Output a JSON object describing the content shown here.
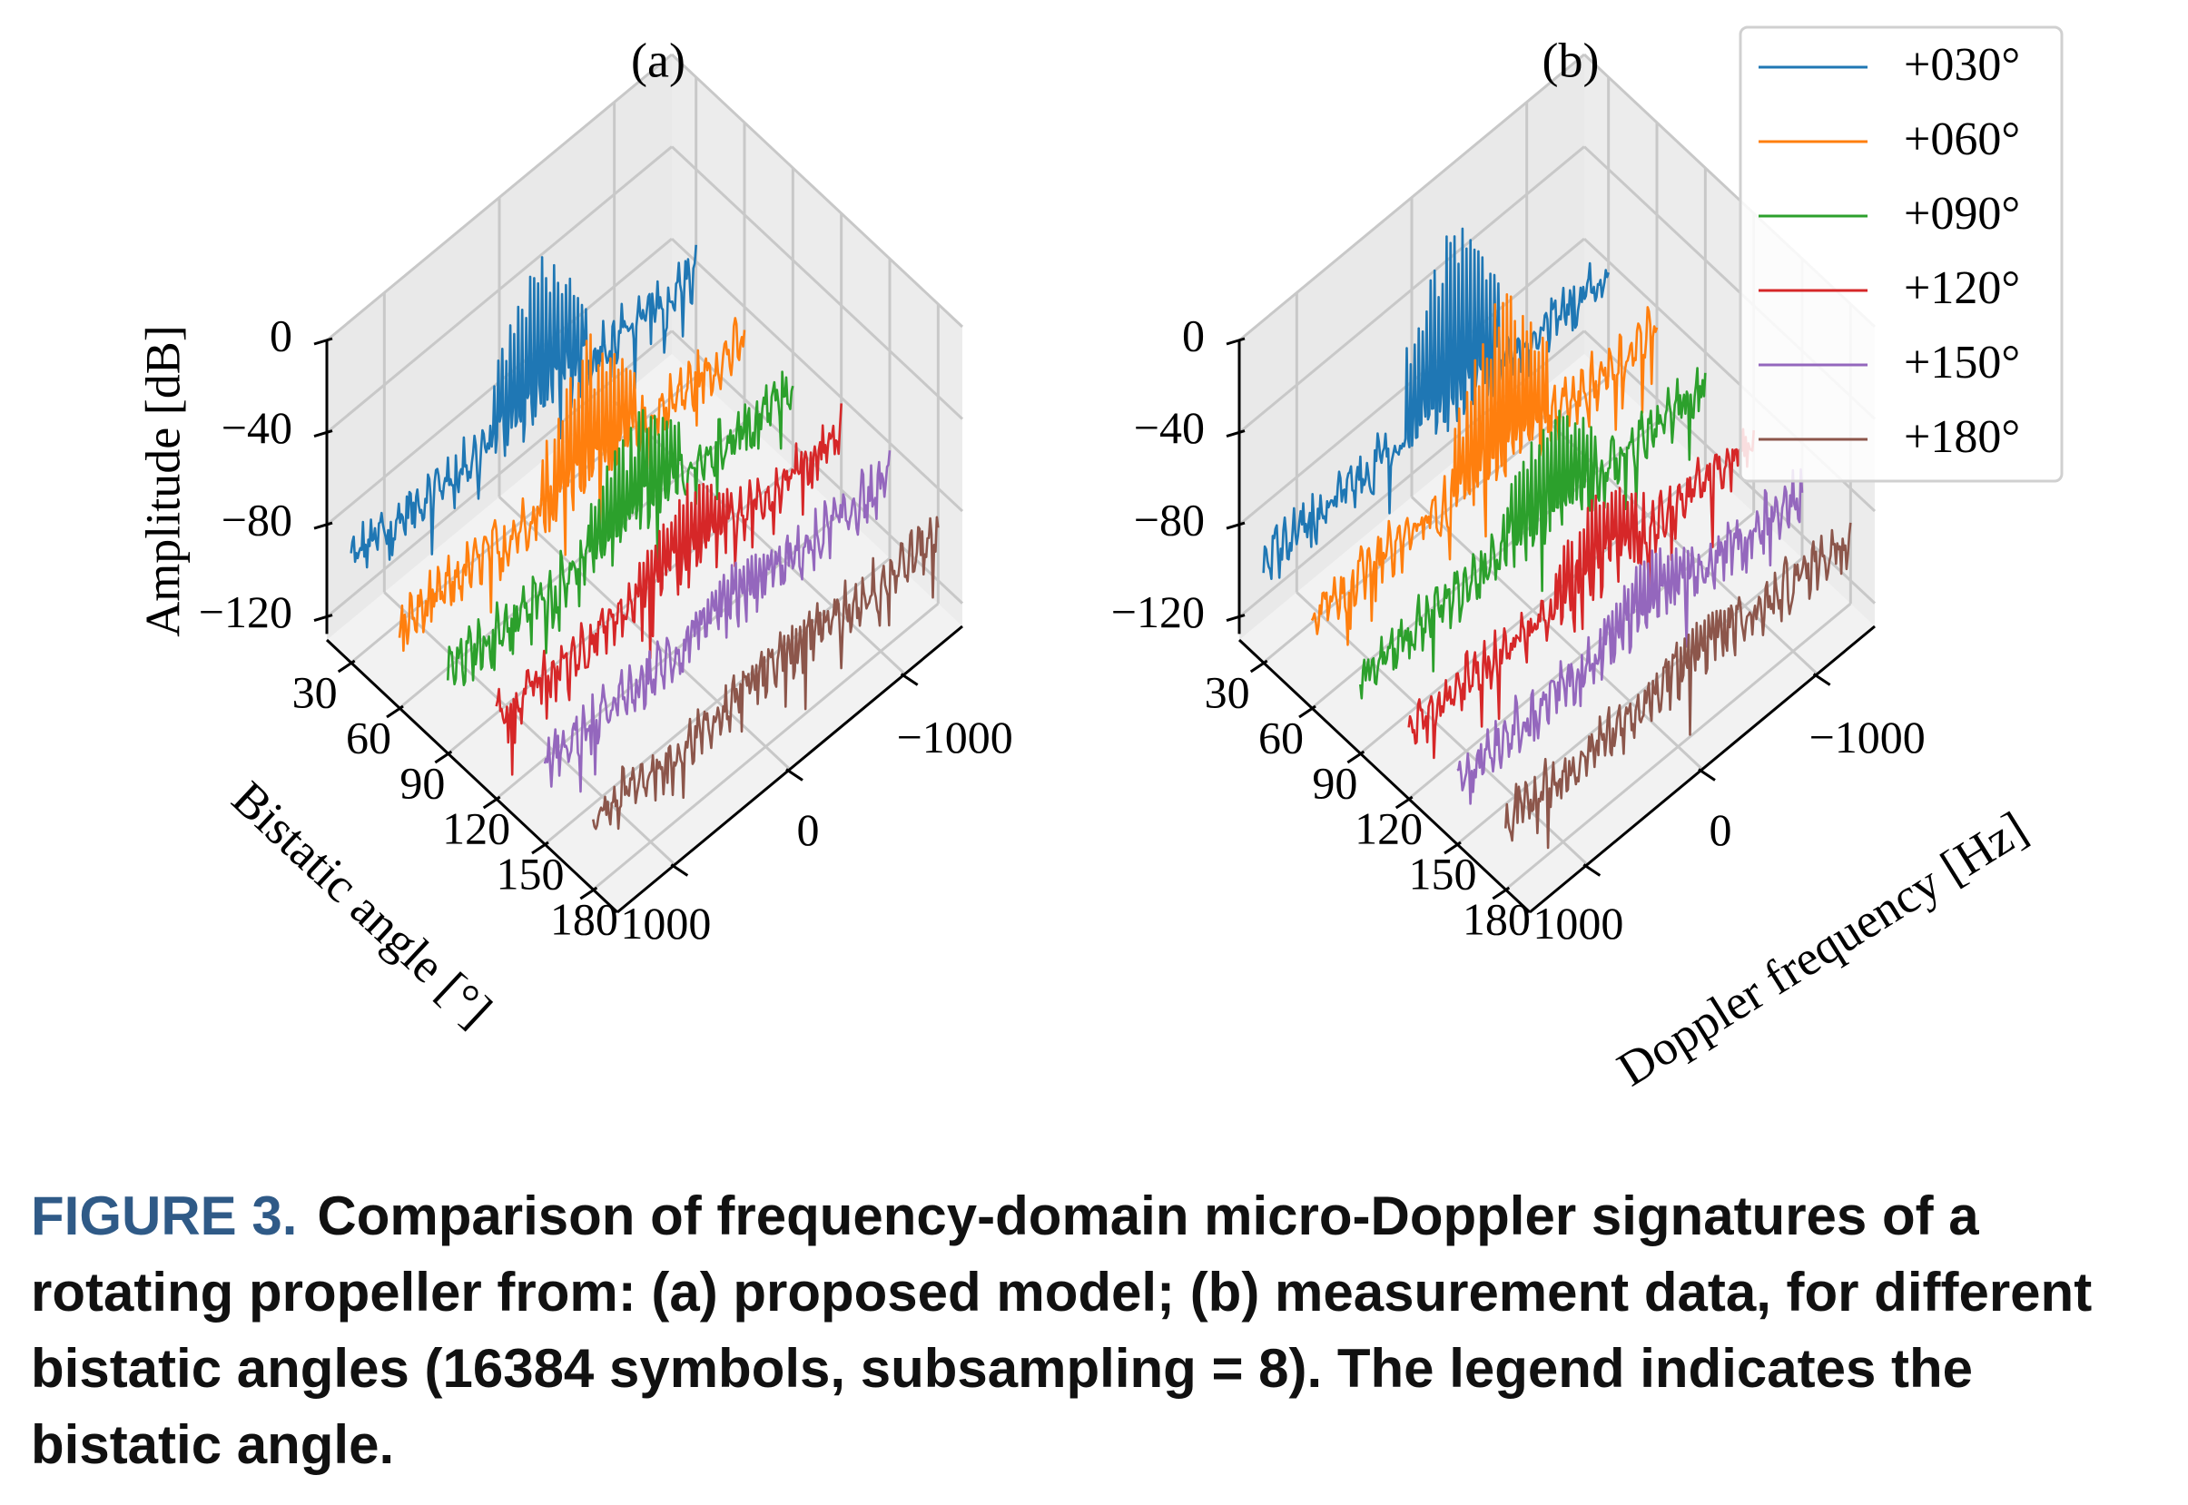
{
  "chart_data": [
    {
      "type": "3d-line",
      "title": "(a)",
      "zlabel": "Amplitude [dB]",
      "ylabel": "Bistatic angle [°]",
      "xlabel": "",
      "z_ticks": [
        "0",
        "−40",
        "−80",
        "−120"
      ],
      "y_ticks": [
        "30",
        "60",
        "90",
        "120",
        "150",
        "180"
      ],
      "x_ticks": [
        "−1000",
        "0",
        "1000"
      ],
      "zlim": [
        -130,
        0
      ],
      "xlim": [
        -1500,
        1500
      ],
      "series": [
        {
          "angle": 30,
          "color": "#1f77b4",
          "noise_floor_db": -85,
          "peak_db": -15
        },
        {
          "angle": 60,
          "color": "#ff7f0e",
          "noise_floor_db": -95,
          "peak_db": -35
        },
        {
          "angle": 90,
          "color": "#2ca02c",
          "noise_floor_db": -95,
          "peak_db": -45
        },
        {
          "angle": 120,
          "color": "#d62728",
          "noise_floor_db": -95,
          "peak_db": -60
        },
        {
          "angle": 150,
          "color": "#9467bd",
          "noise_floor_db": -95,
          "peak_db": -75
        },
        {
          "angle": 180,
          "color": "#8c564b",
          "noise_floor_db": -100,
          "peak_db": -85
        }
      ]
    },
    {
      "type": "3d-line",
      "title": "(b)",
      "zlabel": "",
      "ylabel": "",
      "xlabel": "Doppler frequency [Hz]",
      "z_ticks": [
        "0",
        "−40",
        "−80",
        "−120"
      ],
      "y_ticks": [
        "30",
        "60",
        "90",
        "120",
        "150",
        "180"
      ],
      "x_ticks": [
        "−1000",
        "0",
        "1000"
      ],
      "zlim": [
        -130,
        0
      ],
      "xlim": [
        -1500,
        1500
      ],
      "legend": {
        "position": "top-right",
        "entries": [
          "+030°",
          "+060°",
          "+090°",
          "+120°",
          "+150°",
          "+180°"
        ]
      },
      "series": [
        {
          "angle": 30,
          "color": "#1f77b4",
          "noise_floor_db": -85,
          "peak_db": 0
        },
        {
          "angle": 60,
          "color": "#ff7f0e",
          "noise_floor_db": -90,
          "peak_db": -15
        },
        {
          "angle": 90,
          "color": "#2ca02c",
          "noise_floor_db": -95,
          "peak_db": -45
        },
        {
          "angle": 120,
          "color": "#d62728",
          "noise_floor_db": -100,
          "peak_db": -60
        },
        {
          "angle": 150,
          "color": "#9467bd",
          "noise_floor_db": -100,
          "peak_db": -70
        },
        {
          "angle": 180,
          "color": "#8c564b",
          "noise_floor_db": -100,
          "peak_db": -80
        }
      ]
    }
  ],
  "caption": {
    "label": "FIGURE 3.",
    "text": "Comparison of frequency-domain micro-Doppler signatures of a rotating propeller from: (a) proposed model; (b) measurement data, for different bistatic angles (16384 symbols, subsampling = 8). The legend indicates the bistatic angle."
  }
}
